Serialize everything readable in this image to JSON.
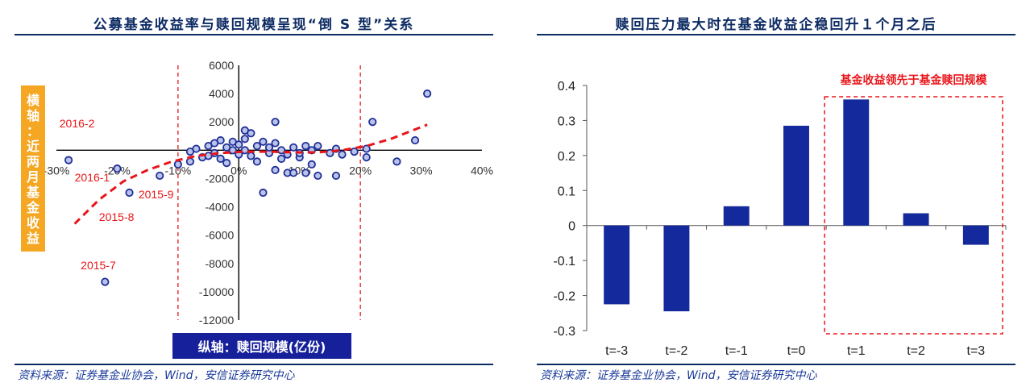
{
  "source_note": "资料来源：证券基金业协会，Wind，安信证券研究中心",
  "colors": {
    "title": "#0d2b63",
    "bar": "#142a9c",
    "point_fill": "#b9c3ea",
    "point_stroke": "#1f2f96",
    "trend": "#e8151a",
    "annotation": "#e8151a",
    "ylabel_bg": "#f5a623",
    "xlabel_bg": "#16209a"
  },
  "left_chart": {
    "title": "公募基金收益率与赎回规模呈现“倒 S 型”关系",
    "ylabel": "横轴：近两月基金收益",
    "xlabel": "纵轴：赎回规模(亿份)",
    "chart_data": {
      "type": "scatter",
      "title": "公募基金收益率与赎回规模呈现“倒 S 型”关系",
      "xlabel": "横轴：近两月基金收益",
      "ylabel": "纵轴：赎回规模(亿份)",
      "xlim": [
        -0.3,
        0.4
      ],
      "ylim": [
        -12000,
        6000
      ],
      "x_ticks": [
        "-30%",
        "-20%",
        "-10%",
        "0%",
        "10%",
        "20%",
        "30%",
        "40%"
      ],
      "y_ticks": [
        "-12000",
        "-10000",
        "-8000",
        "-6000",
        "-4000",
        "-2000",
        "0",
        "2000",
        "4000",
        "6000"
      ],
      "vertical_reference_lines_x": [
        -0.1,
        0.2
      ],
      "points": [
        {
          "x": -0.28,
          "y": -700
        },
        {
          "x": -0.22,
          "y": -9300
        },
        {
          "x": -0.2,
          "y": -1300
        },
        {
          "x": -0.18,
          "y": -3000
        },
        {
          "x": -0.13,
          "y": -1800
        },
        {
          "x": -0.1,
          "y": -1000
        },
        {
          "x": -0.08,
          "y": -100
        },
        {
          "x": -0.08,
          "y": -800
        },
        {
          "x": -0.07,
          "y": 100
        },
        {
          "x": -0.06,
          "y": -500
        },
        {
          "x": -0.05,
          "y": 300
        },
        {
          "x": -0.05,
          "y": -400
        },
        {
          "x": -0.04,
          "y": 500
        },
        {
          "x": -0.04,
          "y": -200
        },
        {
          "x": -0.03,
          "y": 700
        },
        {
          "x": -0.03,
          "y": -600
        },
        {
          "x": -0.02,
          "y": 200
        },
        {
          "x": -0.02,
          "y": -900
        },
        {
          "x": -0.01,
          "y": 600
        },
        {
          "x": -0.01,
          "y": 0
        },
        {
          "x": 0.0,
          "y": 400
        },
        {
          "x": 0.0,
          "y": -300
        },
        {
          "x": 0.01,
          "y": 1400
        },
        {
          "x": 0.01,
          "y": 800
        },
        {
          "x": 0.01,
          "y": 0
        },
        {
          "x": 0.02,
          "y": 1200
        },
        {
          "x": 0.02,
          "y": -400
        },
        {
          "x": 0.03,
          "y": 300
        },
        {
          "x": 0.03,
          "y": -800
        },
        {
          "x": 0.04,
          "y": -3000
        },
        {
          "x": 0.04,
          "y": 600
        },
        {
          "x": 0.05,
          "y": -200
        },
        {
          "x": 0.05,
          "y": 200
        },
        {
          "x": 0.06,
          "y": 2000
        },
        {
          "x": 0.06,
          "y": -1400
        },
        {
          "x": 0.06,
          "y": 500
        },
        {
          "x": 0.07,
          "y": -600
        },
        {
          "x": 0.07,
          "y": 0
        },
        {
          "x": 0.08,
          "y": -1600
        },
        {
          "x": 0.08,
          "y": -300
        },
        {
          "x": 0.09,
          "y": -1600
        },
        {
          "x": 0.09,
          "y": 200
        },
        {
          "x": 0.1,
          "y": -500
        },
        {
          "x": 0.1,
          "y": -200
        },
        {
          "x": 0.11,
          "y": -1600
        },
        {
          "x": 0.11,
          "y": 300
        },
        {
          "x": 0.12,
          "y": -1000
        },
        {
          "x": 0.12,
          "y": 0
        },
        {
          "x": 0.13,
          "y": -1800
        },
        {
          "x": 0.13,
          "y": 300
        },
        {
          "x": 0.15,
          "y": -200
        },
        {
          "x": 0.16,
          "y": -1800
        },
        {
          "x": 0.16,
          "y": 100
        },
        {
          "x": 0.17,
          "y": -300
        },
        {
          "x": 0.19,
          "y": -100
        },
        {
          "x": 0.21,
          "y": 100
        },
        {
          "x": 0.21,
          "y": -500
        },
        {
          "x": 0.22,
          "y": 2000
        },
        {
          "x": 0.26,
          "y": -800
        },
        {
          "x": 0.29,
          "y": 700
        },
        {
          "x": 0.31,
          "y": 4000
        }
      ],
      "trend_curve": [
        {
          "x": -0.27,
          "y": -5200
        },
        {
          "x": -0.23,
          "y": -3500
        },
        {
          "x": -0.19,
          "y": -2200
        },
        {
          "x": -0.15,
          "y": -1400
        },
        {
          "x": -0.11,
          "y": -800
        },
        {
          "x": -0.07,
          "y": -400
        },
        {
          "x": -0.03,
          "y": -200
        },
        {
          "x": 0.01,
          "y": -100
        },
        {
          "x": 0.05,
          "y": -100
        },
        {
          "x": 0.09,
          "y": -150
        },
        {
          "x": 0.13,
          "y": -150
        },
        {
          "x": 0.17,
          "y": 0
        },
        {
          "x": 0.21,
          "y": 300
        },
        {
          "x": 0.25,
          "y": 800
        },
        {
          "x": 0.28,
          "y": 1300
        },
        {
          "x": 0.31,
          "y": 1800
        }
      ],
      "annotations": [
        {
          "text": "2016-2",
          "x": -0.295,
          "y": 1600
        },
        {
          "text": "2016-1",
          "x": -0.27,
          "y": -2200
        },
        {
          "text": "2015-9",
          "x": -0.165,
          "y": -3400
        },
        {
          "text": "2015-8",
          "x": -0.23,
          "y": -5000
        },
        {
          "text": "2015-7",
          "x": -0.26,
          "y": -8400
        }
      ]
    }
  },
  "right_chart": {
    "title": "赎回压力最大时在基金收益企稳回升１个月之后",
    "highlight_label": "基金收益领先于基金赎回规模",
    "chart_data": {
      "type": "bar",
      "title": "赎回压力最大时在基金收益企稳回升１个月之后",
      "categories": [
        "t=-3",
        "t=-2",
        "t=-1",
        "t=0",
        "t=1",
        "t=2",
        "t=3"
      ],
      "values": [
        -0.225,
        -0.245,
        0.055,
        0.285,
        0.36,
        0.035,
        -0.055
      ],
      "ylim": [
        -0.3,
        0.4
      ],
      "y_ticks": [
        "-0.3",
        "-0.2",
        "-0.1",
        "0",
        "0.1",
        "0.2",
        "0.3",
        "0.4"
      ],
      "highlight_categories": [
        "t=1",
        "t=2",
        "t=3"
      ],
      "grid": false
    }
  }
}
